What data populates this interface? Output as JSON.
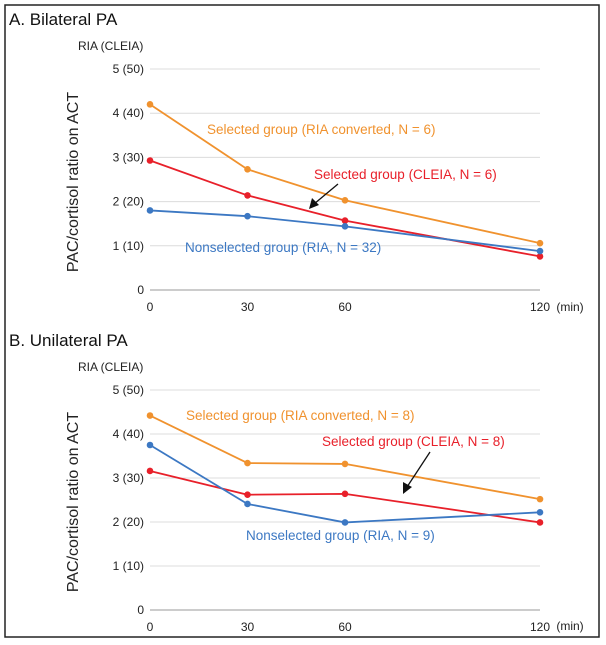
{
  "chart_data": [
    {
      "type": "line",
      "title": "A. Bilateral PA",
      "ylabel": "PAC/cortisol ratio on ACT",
      "y_unit_label": "RIA (CLEIA)",
      "x_unit_label": "(min)",
      "x": [
        0,
        30,
        60,
        120
      ],
      "ylim": [
        0,
        5
      ],
      "y_ticks": [
        "0",
        "1 (10)",
        "2 (20)",
        "3 (30)",
        "4 (40)",
        "5 (50)"
      ],
      "grid": true,
      "series": [
        {
          "name": "Selected group (RIA converted, N = 6)",
          "color": "#F0922E",
          "values": [
            4.2,
            2.73,
            2.03,
            1.06
          ]
        },
        {
          "name": "Selected group (CLEIA, N = 6)",
          "color": "#E8202A",
          "values": [
            2.93,
            2.14,
            1.57,
            0.76
          ]
        },
        {
          "name": "Nonselected group (RIA, N = 32)",
          "color": "#3C78C3",
          "values": [
            1.8,
            1.67,
            1.44,
            0.88
          ]
        }
      ]
    },
    {
      "type": "line",
      "title": "B. Unilateral PA",
      "ylabel": "PAC/cortisol ratio on ACT",
      "y_unit_label": "RIA (CLEIA)",
      "x_unit_label": "(min)",
      "x": [
        0,
        30,
        60,
        120
      ],
      "ylim": [
        0,
        5
      ],
      "y_ticks": [
        "0",
        "1 (10)",
        "2 (20)",
        "3 (30)",
        "4 (40)",
        "5 (50)"
      ],
      "grid": true,
      "series": [
        {
          "name": "Selected group (RIA converted, N = 8)",
          "color": "#F0922E",
          "values": [
            4.42,
            3.34,
            3.32,
            2.52
          ]
        },
        {
          "name": "Selected group (CLEIA, N = 8)",
          "color": "#E8202A",
          "values": [
            3.16,
            2.62,
            2.64,
            1.99
          ]
        },
        {
          "name": "Nonselected group (RIA, N = 9)",
          "color": "#3C78C3",
          "values": [
            3.75,
            2.41,
            1.99,
            2.22
          ]
        }
      ]
    }
  ]
}
